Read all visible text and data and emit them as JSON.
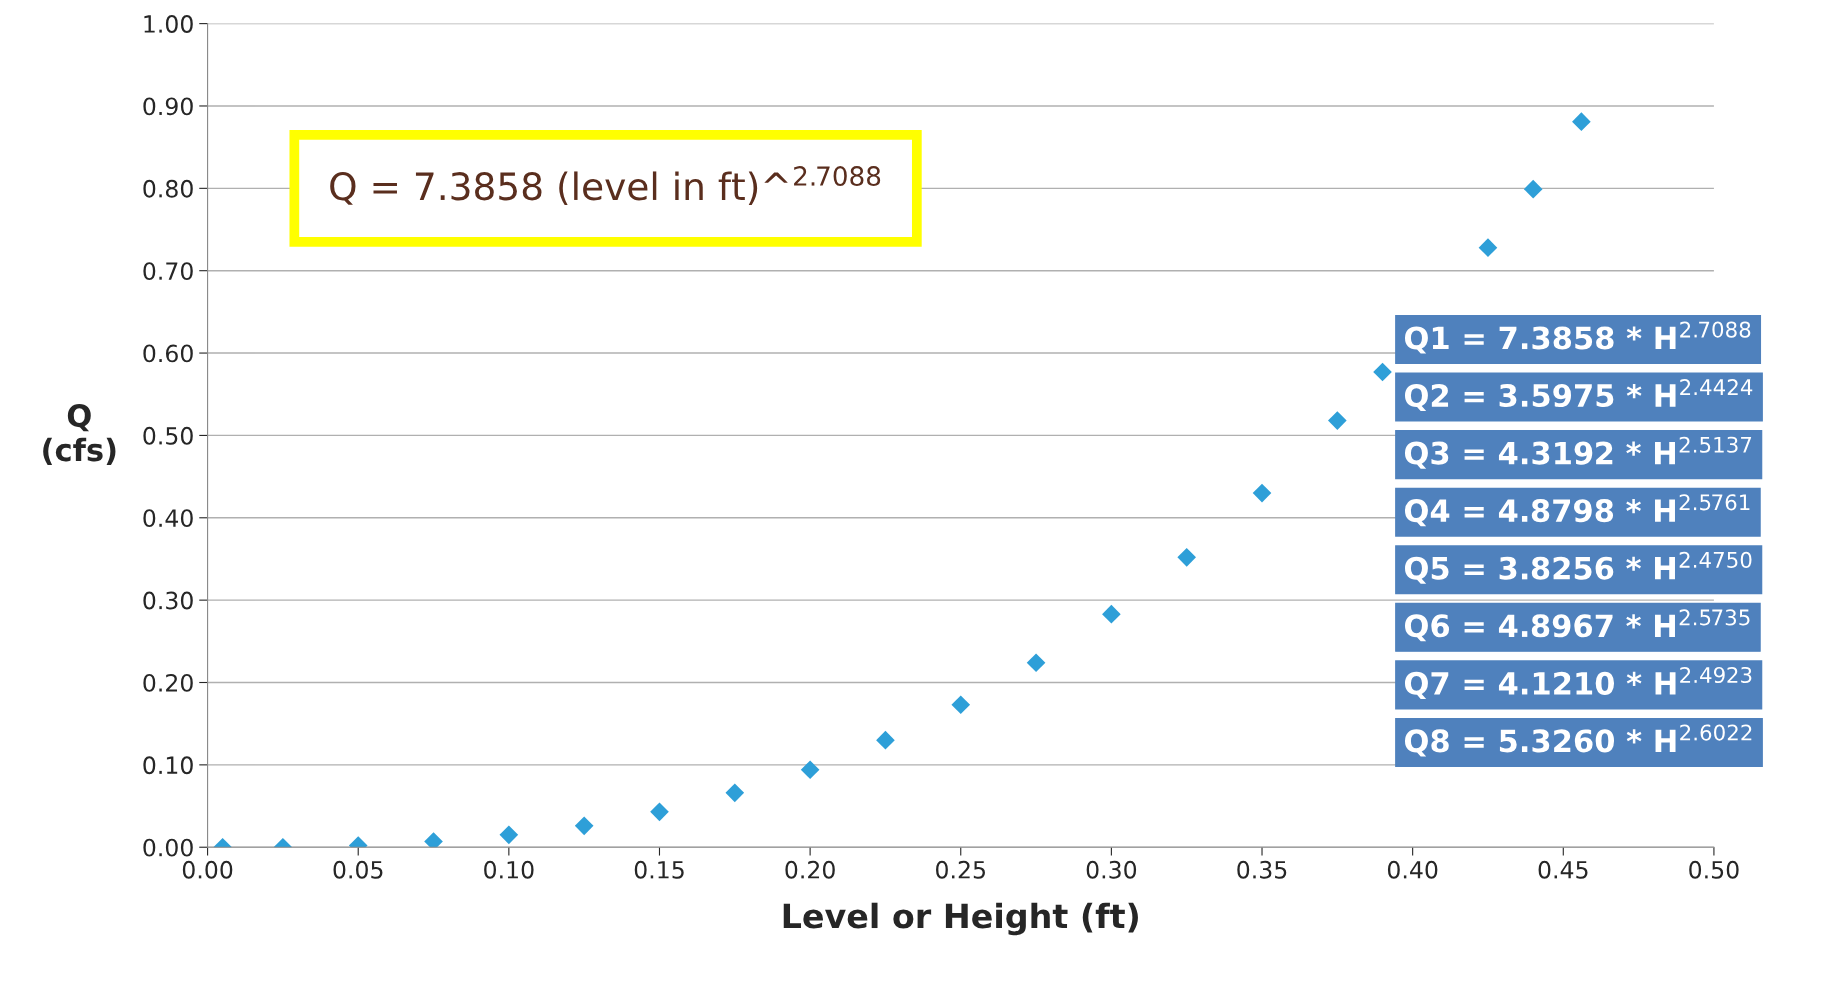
{
  "chart_data": {
    "type": "scatter",
    "xlabel": "Level or Height (ft)",
    "ylabel": "Q\n(cfs)",
    "x": [
      0.005,
      0.025,
      0.05,
      0.075,
      0.1,
      0.125,
      0.15,
      0.175,
      0.2,
      0.225,
      0.25,
      0.275,
      0.3,
      0.325,
      0.35,
      0.375,
      0.39,
      0.425,
      0.44,
      0.456
    ],
    "series": [
      {
        "color": "#2e9fd8",
        "values": [
          0.0,
          0.0,
          0.002,
          0.007,
          0.015,
          0.026,
          0.043,
          0.066,
          0.094,
          0.13,
          0.173,
          0.224,
          0.283,
          0.352,
          0.43,
          0.518,
          0.577,
          0.728,
          0.799,
          0.881
        ]
      }
    ],
    "xlim": [
      0,
      0.5
    ],
    "xticks": [
      {
        "value": 0,
        "label": "0.00"
      },
      0.05,
      {
        "value": 0.1,
        "label": "0.10"
      },
      0.15,
      {
        "value": 0.2,
        "label": "0.20"
      },
      0.25,
      {
        "value": 0.3,
        "label": "0.30"
      },
      0.35,
      {
        "value": 0.4,
        "label": "0.40"
      },
      0.45,
      {
        "value": 0.5,
        "label": "0.50"
      }
    ],
    "ylim": [
      0,
      1
    ],
    "yticks": [
      {
        "value": 0,
        "label": "0.00"
      },
      {
        "value": 0.1,
        "label": "0.10"
      },
      {
        "value": 0.2,
        "label": "0.20"
      },
      {
        "value": 0.3,
        "label": "0.30"
      },
      {
        "value": 0.4,
        "label": "0.40"
      },
      {
        "value": 0.5,
        "label": "0.50"
      },
      {
        "value": 0.6,
        "label": "0.60"
      },
      {
        "value": 0.7,
        "label": "0.70"
      },
      {
        "value": 0.8,
        "label": "0.80"
      },
      {
        "value": 0.9,
        "label": "0.90"
      },
      {
        "value": 1,
        "label": "1.00"
      }
    ],
    "grid": "y",
    "marker": "diamond",
    "legend": false,
    "annotations": [
      "Q = 7.3858 (level in ft)^$^{2.7088}$",
      "Q1 = 7.3858 * H$^{2.7088}$",
      "Q2 = 3.5975 * H$^{2.4424}$",
      "Q3 = 4.3192 * H$^{2.5137}$",
      "Q4 = 4.8798 * H$^{2.5761}$",
      "Q5 = 3.8256 * H$^{2.4750}$",
      "Q6 = 4.8967 * H$^{2.5735}$",
      "Q7 = 4.1210 * H$^{2.4923}$",
      "Q8 = 5.3260 * H$^{2.6022}$"
    ]
  }
}
